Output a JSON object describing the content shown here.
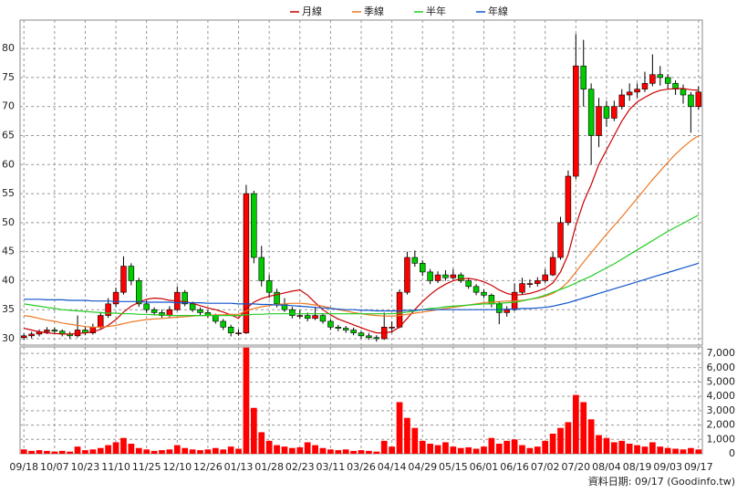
{
  "chart_data": [
    {
      "type": "candlestick",
      "categories": [
        "09/18",
        null,
        null,
        null,
        "10/07",
        null,
        null,
        null,
        "10/23",
        null,
        null,
        null,
        "11/10",
        null,
        null,
        null,
        "11/25",
        null,
        null,
        null,
        "12/10",
        null,
        null,
        null,
        "12/26",
        null,
        null,
        null,
        "01/13",
        null,
        null,
        null,
        "01/28",
        null,
        null,
        null,
        "02/23",
        null,
        null,
        null,
        "03/11",
        null,
        null,
        null,
        "03/26",
        null,
        null,
        null,
        "04/14",
        null,
        null,
        null,
        "04/29",
        null,
        null,
        null,
        "05/15",
        null,
        null,
        null,
        "06/01",
        null,
        null,
        null,
        "06/16",
        null,
        null,
        null,
        "07/02",
        null,
        null,
        null,
        "07/20",
        null,
        null,
        null,
        "08/04",
        null,
        null,
        null,
        "08/19",
        null,
        null,
        null,
        "09/03",
        null,
        null,
        null,
        "09/17"
      ],
      "open": [
        30.2,
        30.5,
        30.8,
        31.2,
        31.5,
        31.3,
        30.8,
        30.5,
        31.5,
        31.0,
        32.0,
        34.0,
        36.0,
        38.0,
        42.5,
        40.0,
        36.0,
        35.0,
        34.5,
        34.0,
        35.0,
        38.0,
        36.0,
        35.0,
        34.5,
        34.0,
        33.0,
        32.0,
        31.0,
        31.0,
        55.0,
        44.0,
        40.0,
        38.0,
        36.0,
        35.0,
        34.0,
        34.0,
        33.5,
        34.0,
        33.0,
        32.0,
        31.8,
        31.5,
        31.0,
        30.5,
        30.2,
        30.0,
        32.0,
        32.0,
        38.0,
        44.0,
        43.0,
        41.5,
        40.0,
        41.0,
        40.5,
        41.0,
        40.0,
        39.0,
        38.0,
        37.5,
        36.0,
        34.5,
        35.0,
        38.0,
        39.5,
        39.5,
        40.0,
        41.0,
        44.0,
        50.0,
        58.0,
        77.0,
        73.0,
        65.0,
        70.0,
        68.0,
        70.0,
        72.0,
        72.5,
        73.0,
        74.0,
        75.5,
        75.0,
        74.0,
        73.0,
        72.0,
        70.0
      ],
      "high": [
        30.9,
        31.2,
        31.6,
        32.0,
        31.9,
        31.6,
        31.2,
        34.0,
        32.0,
        32.6,
        34.6,
        37.0,
        38.8,
        44.2,
        43.0,
        40.5,
        36.6,
        35.4,
        35.0,
        35.6,
        39.0,
        38.4,
        36.4,
        35.4,
        35.0,
        34.3,
        33.4,
        32.4,
        31.6,
        56.5,
        55.5,
        46.0,
        41.0,
        38.6,
        37.0,
        35.5,
        35.0,
        34.5,
        35.5,
        34.4,
        33.4,
        32.4,
        32.2,
        31.9,
        31.4,
        31.0,
        30.6,
        34.5,
        33.0,
        38.5,
        45.0,
        45.2,
        43.5,
        42.0,
        41.6,
        41.8,
        42.0,
        41.4,
        40.4,
        39.4,
        38.5,
        37.8,
        36.4,
        35.6,
        39.5,
        40.5,
        40.2,
        40.6,
        42.0,
        45.0,
        51.0,
        59.0,
        82.5,
        81.5,
        74.0,
        71.5,
        71.0,
        71.0,
        73.0,
        74.0,
        74.0,
        76.0,
        79.0,
        77.0,
        75.6,
        74.5,
        73.8,
        72.5,
        73.5
      ],
      "low": [
        29.8,
        30.1,
        30.4,
        30.8,
        30.9,
        30.4,
        30.0,
        30.2,
        30.6,
        30.7,
        31.7,
        33.6,
        35.5,
        37.6,
        39.2,
        35.5,
        34.5,
        34.0,
        33.6,
        33.7,
        34.8,
        35.6,
        34.6,
        34.0,
        33.6,
        32.6,
        31.5,
        30.4,
        30.5,
        30.8,
        43.0,
        39.0,
        37.0,
        35.4,
        34.6,
        33.5,
        33.4,
        33.0,
        33.2,
        32.6,
        31.5,
        31.3,
        31.0,
        30.6,
        30.0,
        29.8,
        29.5,
        29.8,
        31.0,
        31.8,
        37.6,
        42.4,
        40.8,
        39.4,
        39.6,
        40.0,
        40.2,
        39.6,
        38.6,
        37.5,
        37.0,
        35.4,
        32.5,
        33.8,
        34.8,
        37.6,
        38.8,
        39.0,
        39.6,
        40.8,
        43.6,
        49.5,
        57.5,
        70.0,
        60.0,
        63.0,
        66.5,
        67.5,
        69.5,
        71.0,
        71.5,
        72.5,
        73.5,
        73.6,
        73.0,
        72.0,
        70.5,
        65.5,
        69.5
      ],
      "close": [
        30.5,
        30.8,
        31.2,
        31.5,
        31.3,
        30.8,
        30.5,
        31.5,
        31.0,
        32.0,
        34.0,
        36.0,
        38.0,
        42.5,
        40.0,
        36.0,
        35.0,
        34.5,
        34.0,
        35.0,
        38.0,
        36.0,
        35.0,
        34.5,
        34.0,
        33.0,
        32.0,
        31.0,
        31.0,
        55.0,
        44.0,
        40.0,
        38.0,
        36.0,
        35.0,
        34.0,
        34.0,
        33.5,
        34.0,
        33.0,
        32.0,
        31.8,
        31.5,
        31.0,
        30.5,
        30.2,
        30.0,
        32.0,
        32.0,
        38.0,
        44.0,
        43.0,
        41.5,
        40.0,
        41.0,
        40.5,
        41.0,
        40.0,
        39.0,
        38.0,
        37.5,
        36.0,
        34.5,
        35.0,
        38.0,
        39.5,
        39.5,
        40.0,
        41.0,
        44.0,
        50.0,
        58.0,
        77.0,
        73.0,
        65.0,
        70.0,
        68.0,
        70.0,
        72.0,
        72.5,
        73.0,
        74.0,
        75.5,
        75.0,
        74.0,
        73.0,
        72.0,
        70.0,
        72.5
      ],
      "up_color": "#ff0000",
      "down_color": "#00cc00",
      "series": [
        {
          "name": "月線",
          "color": "#cc0000",
          "values": [
            31.8,
            31.5,
            31.2,
            31.0,
            30.9,
            30.8,
            30.8,
            30.9,
            31.0,
            31.2,
            31.6,
            32.3,
            33.3,
            34.6,
            35.6,
            36.3,
            36.8,
            37.0,
            36.9,
            36.6,
            36.5,
            36.4,
            36.1,
            35.7,
            35.3,
            35.0,
            34.6,
            34.1,
            33.5,
            35.2,
            36.3,
            36.9,
            37.3,
            37.6,
            37.9,
            38.2,
            38.4,
            37.5,
            36.2,
            35.0,
            34.1,
            33.4,
            32.9,
            32.4,
            31.9,
            31.4,
            31.0,
            31.0,
            31.2,
            32.0,
            33.5,
            35.0,
            36.4,
            37.6,
            38.6,
            39.4,
            40.0,
            40.3,
            40.4,
            40.2,
            39.8,
            39.2,
            38.4,
            37.8,
            37.5,
            37.6,
            37.8,
            38.2,
            38.7,
            39.6,
            41.5,
            44.5,
            49.5,
            53.5,
            56.5,
            60.0,
            62.5,
            65.0,
            67.5,
            69.5,
            70.8,
            71.6,
            72.3,
            72.8,
            73.0,
            73.1,
            73.1,
            72.9,
            72.8
          ]
        },
        {
          "name": "季線",
          "color": "#ee7722",
          "values": [
            34.0,
            33.8,
            33.5,
            33.2,
            33.0,
            32.7,
            32.5,
            32.3,
            32.1,
            32.0,
            32.0,
            32.1,
            32.3,
            32.6,
            32.9,
            33.1,
            33.3,
            33.4,
            33.5,
            33.6,
            33.7,
            33.8,
            33.9,
            34.0,
            34.0,
            34.1,
            34.1,
            34.2,
            34.2,
            34.8,
            35.2,
            35.5,
            35.7,
            35.9,
            36.0,
            36.1,
            36.1,
            36.0,
            35.8,
            35.6,
            35.3,
            35.0,
            34.8,
            34.5,
            34.3,
            34.1,
            34.0,
            33.9,
            33.9,
            34.0,
            34.2,
            34.4,
            34.6,
            34.8,
            35.0,
            35.2,
            35.4,
            35.6,
            35.8,
            36.0,
            36.2,
            36.3,
            36.4,
            36.5,
            36.5,
            36.6,
            36.8,
            37.0,
            37.3,
            37.8,
            38.6,
            39.8,
            41.5,
            43.2,
            44.8,
            46.4,
            48.0,
            49.5,
            51.0,
            52.6,
            54.2,
            55.8,
            57.4,
            58.9,
            60.4,
            61.8,
            63.0,
            64.1,
            65.0
          ]
        },
        {
          "name": "半年",
          "color": "#22cc22",
          "values": [
            36.0,
            35.8,
            35.6,
            35.4,
            35.2,
            35.0,
            34.9,
            34.8,
            34.7,
            34.6,
            34.5,
            34.4,
            34.4,
            34.3,
            34.3,
            34.2,
            34.2,
            34.1,
            34.1,
            34.0,
            34.0,
            34.0,
            34.0,
            34.0,
            34.0,
            34.0,
            34.0,
            34.0,
            34.0,
            34.1,
            34.2,
            34.2,
            34.3,
            34.3,
            34.3,
            34.3,
            34.3,
            34.3,
            34.3,
            34.3,
            34.3,
            34.3,
            34.3,
            34.3,
            34.3,
            34.3,
            34.3,
            34.3,
            34.3,
            34.4,
            34.6,
            34.8,
            35.0,
            35.2,
            35.3,
            35.5,
            35.6,
            35.7,
            35.8,
            35.9,
            36.0,
            36.0,
            36.1,
            36.2,
            36.3,
            36.5,
            36.8,
            37.1,
            37.5,
            38.0,
            38.5,
            39.0,
            39.6,
            40.2,
            40.8,
            41.5,
            42.2,
            42.9,
            43.7,
            44.5,
            45.3,
            46.1,
            46.9,
            47.7,
            48.5,
            49.2,
            49.9,
            50.6,
            51.3
          ]
        },
        {
          "name": "年線",
          "color": "#1155cc",
          "values": [
            36.8,
            36.8,
            36.8,
            36.7,
            36.7,
            36.7,
            36.6,
            36.6,
            36.6,
            36.5,
            36.5,
            36.5,
            36.4,
            36.4,
            36.4,
            36.4,
            36.3,
            36.3,
            36.3,
            36.3,
            36.2,
            36.2,
            36.2,
            36.2,
            36.1,
            36.1,
            36.1,
            36.1,
            36.0,
            36.0,
            36.0,
            35.9,
            35.9,
            35.8,
            35.8,
            35.7,
            35.6,
            35.5,
            35.4,
            35.3,
            35.2,
            35.1,
            35.0,
            35.0,
            34.9,
            34.9,
            34.8,
            34.8,
            34.8,
            34.8,
            34.9,
            34.9,
            35.0,
            35.0,
            35.0,
            35.0,
            35.0,
            35.0,
            35.0,
            35.0,
            35.0,
            35.0,
            35.0,
            35.1,
            35.1,
            35.2,
            35.2,
            35.3,
            35.4,
            35.6,
            35.9,
            36.2,
            36.6,
            37.0,
            37.4,
            37.8,
            38.2,
            38.6,
            39.0,
            39.4,
            39.8,
            40.2,
            40.6,
            41.0,
            41.4,
            41.8,
            42.2,
            42.6,
            43.0
          ]
        }
      ],
      "ylim": [
        28.9,
        84.9
      ],
      "yticks": [
        30,
        35,
        40,
        45,
        50,
        55,
        60,
        65,
        70,
        75,
        80
      ],
      "grid": true,
      "legend": "top"
    },
    {
      "type": "bar",
      "color": "#ff0000",
      "values": [
        300,
        200,
        250,
        200,
        150,
        200,
        150,
        500,
        250,
        300,
        400,
        600,
        800,
        1100,
        700,
        400,
        300,
        200,
        250,
        300,
        600,
        400,
        300,
        250,
        300,
        400,
        300,
        500,
        350,
        7400,
        3200,
        1500,
        900,
        600,
        500,
        400,
        450,
        800,
        600,
        400,
        300,
        250,
        300,
        200,
        250,
        200,
        150,
        900,
        500,
        3600,
        2500,
        1800,
        900,
        700,
        600,
        800,
        500,
        400,
        450,
        350,
        500,
        1100,
        700,
        900,
        1000,
        600,
        400,
        500,
        900,
        1400,
        1800,
        2200,
        4100,
        3600,
        2400,
        1300,
        1100,
        800,
        900,
        700,
        600,
        500,
        800,
        500,
        400,
        350,
        300,
        400,
        300
      ],
      "ylim": [
        0,
        7450
      ],
      "yticks": [
        0,
        {
          "value": 1000,
          "label": "1,000"
        },
        {
          "value": 2000,
          "label": "2,000"
        },
        {
          "value": 3000,
          "label": "3,000"
        },
        {
          "value": 4000,
          "label": "4,000"
        },
        {
          "value": 5000,
          "label": "5,000"
        },
        {
          "value": 6000,
          "label": "6,000"
        },
        {
          "value": 7000,
          "label": "7,000"
        }
      ],
      "grid": true
    }
  ],
  "footer": "資料日期: 09/17  (Goodinfo.tw)"
}
